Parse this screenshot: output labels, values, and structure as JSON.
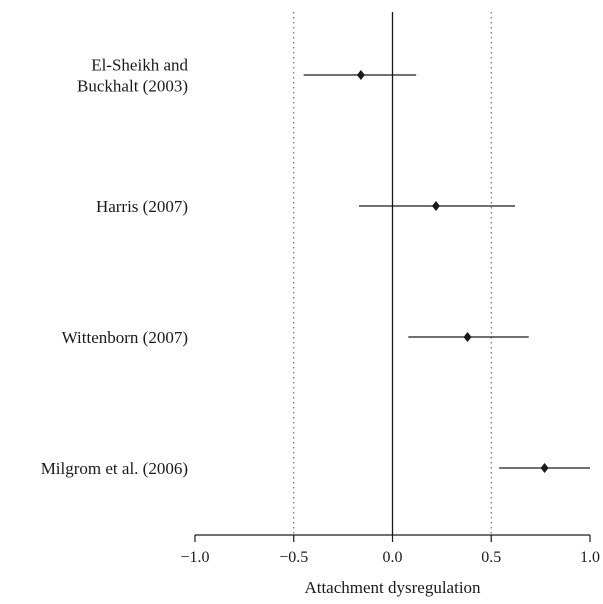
{
  "chart_data": {
    "type": "scatter",
    "title": "",
    "xlabel": "Attachment dysregulation",
    "ylabel": "",
    "xlim": [
      -1.0,
      1.0
    ],
    "xticks": [
      "−1.0",
      "−0.5",
      "0.0",
      "0.5",
      "1.0"
    ],
    "xtick_values": [
      -1.0,
      -0.5,
      0.0,
      0.5,
      1.0
    ],
    "reference_lines": [
      -0.5,
      0.5
    ],
    "zero_line": 0.0,
    "grid": false,
    "legend": "none",
    "studies": [
      {
        "label_lines": [
          "El-Sheikh and",
          "Buckhalt (2003)"
        ],
        "estimate": -0.16,
        "ci_low": -0.45,
        "ci_high": 0.12
      },
      {
        "label_lines": [
          "Harris (2007)"
        ],
        "estimate": 0.22,
        "ci_low": -0.17,
        "ci_high": 0.62
      },
      {
        "label_lines": [
          "Wittenborn (2007)"
        ],
        "estimate": 0.38,
        "ci_low": 0.08,
        "ci_high": 0.69
      },
      {
        "label_lines": [
          "Milgrom et al. (2006)"
        ],
        "estimate": 0.77,
        "ci_low": 0.54,
        "ci_high": 1.0
      }
    ]
  }
}
